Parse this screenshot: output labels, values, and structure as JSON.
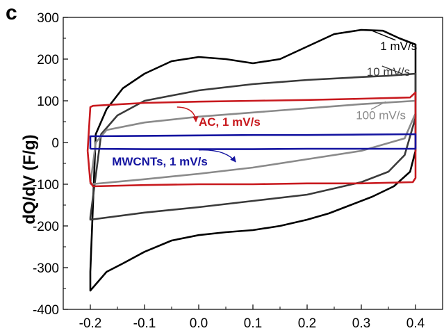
{
  "panel_label": "c",
  "chart_data": {
    "type": "line",
    "title": "",
    "xlabel": "",
    "ylabel": "dQ/dV (F/g)",
    "xlim": [
      -0.25,
      0.45
    ],
    "ylim": [
      -400,
      300
    ],
    "xticks": [
      -0.2,
      -0.1,
      0.0,
      0.1,
      0.2,
      0.3,
      0.4
    ],
    "xtick_labels": [
      "-0.2",
      "-0.1",
      "0.0",
      "0.1",
      "0.2",
      "0.3",
      "0.4"
    ],
    "yticks": [
      -400,
      -300,
      -200,
      -100,
      0,
      100,
      200,
      300
    ],
    "ytick_labels": [
      "-400",
      "-300",
      "-200",
      "-100",
      "0",
      "100",
      "200",
      "300"
    ],
    "grid": false,
    "series": [
      {
        "name": "1 mV/s",
        "color": "#000000",
        "x": [
          -0.2,
          -0.19,
          -0.17,
          -0.14,
          -0.1,
          -0.05,
          0.0,
          0.05,
          0.1,
          0.15,
          0.2,
          0.25,
          0.3,
          0.34,
          0.37,
          0.39,
          0.4,
          0.4,
          0.39,
          0.36,
          0.32,
          0.28,
          0.24,
          0.2,
          0.15,
          0.1,
          0.05,
          0.0,
          -0.05,
          -0.1,
          -0.14,
          -0.17,
          -0.19,
          -0.2,
          -0.2
        ],
        "y": [
          -310,
          20,
          80,
          130,
          165,
          195,
          205,
          200,
          190,
          200,
          230,
          260,
          270,
          268,
          250,
          240,
          235,
          -20,
          -70,
          -105,
          -130,
          -150,
          -170,
          -185,
          -200,
          -210,
          -215,
          -222,
          -235,
          -262,
          -290,
          -310,
          -340,
          -355,
          -310
        ]
      },
      {
        "name": "10 mV/s",
        "color": "#3a3a3a",
        "x": [
          -0.2,
          -0.18,
          -0.15,
          -0.1,
          0.0,
          0.1,
          0.2,
          0.3,
          0.35,
          0.38,
          0.4,
          0.4,
          0.38,
          0.35,
          0.3,
          0.2,
          0.1,
          0.0,
          -0.1,
          -0.2,
          -0.2
        ],
        "y": [
          -180,
          20,
          65,
          100,
          125,
          140,
          150,
          157,
          160,
          163,
          165,
          60,
          -30,
          -70,
          -95,
          -125,
          -140,
          -155,
          -168,
          -185,
          -180
        ]
      },
      {
        "name": "100 mV/s",
        "color": "#8a8a8a",
        "x": [
          -0.2,
          -0.19,
          -0.17,
          -0.1,
          0.0,
          0.1,
          0.2,
          0.3,
          0.4,
          0.4,
          0.38,
          0.3,
          0.2,
          0.1,
          0.0,
          -0.1,
          -0.2,
          -0.2
        ],
        "y": [
          -100,
          0,
          30,
          48,
          62,
          72,
          82,
          92,
          100,
          70,
          10,
          -20,
          -40,
          -60,
          -75,
          -88,
          -100,
          -100
        ]
      },
      {
        "name": "AC, 1 mV/s",
        "color": "#c8191e",
        "x": [
          -0.205,
          -0.2,
          -0.195,
          -0.1,
          0.0,
          0.1,
          0.2,
          0.3,
          0.39,
          0.4,
          0.4,
          0.395,
          0.3,
          0.2,
          0.1,
          0.0,
          -0.1,
          -0.195,
          -0.2,
          -0.205
        ],
        "y": [
          -20,
          85,
          88,
          95,
          98,
          100,
          102,
          105,
          108,
          120,
          -85,
          -95,
          -98,
          -98,
          -100,
          -100,
          -102,
          -105,
          -95,
          -20
        ]
      },
      {
        "name": "MWCNTs, 1 mV/s",
        "color": "#1414a0",
        "x": [
          -0.2,
          -0.2,
          -0.1,
          0.0,
          0.1,
          0.2,
          0.3,
          0.4,
          0.4,
          0.3,
          0.2,
          0.1,
          0.0,
          -0.1,
          -0.2
        ],
        "y": [
          -15,
          15,
          16,
          17,
          18,
          18,
          19,
          20,
          -15,
          -15,
          -15,
          -16,
          -16,
          -16,
          -15
        ]
      }
    ],
    "annotations": [
      {
        "text": "1 mV/s",
        "color": "#000000",
        "bold": false,
        "x": 0.335,
        "y": 222,
        "arrow_to": [
          0.32,
          268
        ],
        "arrow_head": false
      },
      {
        "text": "10 mV/s",
        "color": "#3a3a3a",
        "bold": false,
        "x": 0.31,
        "y": 160,
        "arrow_to": [
          0.375,
          165
        ],
        "arrow_head": false
      },
      {
        "text": "100 mV/s",
        "color": "#8a8a8a",
        "bold": false,
        "x": 0.29,
        "y": 56,
        "arrow_to": [
          0.345,
          98
        ],
        "arrow_head": false
      },
      {
        "text": "AC, 1 mV/s",
        "color": "#c8191e",
        "bold": true,
        "x": 0.0,
        "y": 40,
        "arrow_from": [
          -0.04,
          85
        ],
        "arrow_head": true
      },
      {
        "text": "MWCNTs, 1 mV/s",
        "color": "#1414a0",
        "bold": true,
        "x": -0.16,
        "y": -55,
        "arrow_from": [
          0.0,
          -18
        ],
        "arrow_head": true
      }
    ]
  }
}
